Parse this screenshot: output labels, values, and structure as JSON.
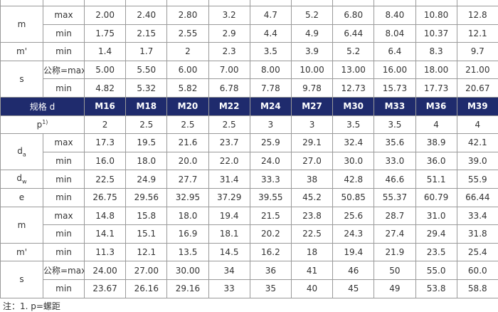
{
  "upper_table": {
    "groups": [
      {
        "label": "m",
        "rows": [
          {
            "sub": "max",
            "values": [
              "2.00",
              "2.40",
              "2.80",
              "3.2",
              "4.7",
              "5.2",
              "6.80",
              "8.40",
              "10.80",
              "12.8"
            ]
          },
          {
            "sub": "min",
            "values": [
              "1.75",
              "2.15",
              "2.55",
              "2.9",
              "4.4",
              "4.9",
              "6.44",
              "8.04",
              "10.37",
              "12.1"
            ]
          }
        ]
      },
      {
        "label": "m'",
        "rows": [
          {
            "sub": "min",
            "values": [
              "1.4",
              "1.7",
              "2",
              "2.3",
              "3.5",
              "3.9",
              "5.2",
              "6.4",
              "8.3",
              "9.7"
            ]
          }
        ]
      },
      {
        "label": "s",
        "rows": [
          {
            "sub": "公称=max",
            "values": [
              "5.00",
              "5.50",
              "6.00",
              "7.00",
              "8.00",
              "10.00",
              "13.00",
              "16.00",
              "18.00",
              "21.00"
            ]
          },
          {
            "sub": "min",
            "values": [
              "4.82",
              "5.32",
              "5.82",
              "6.78",
              "7.78",
              "9.78",
              "12.73",
              "15.73",
              "17.73",
              "20.67"
            ]
          }
        ]
      }
    ]
  },
  "header": {
    "label": "规格 d",
    "sizes": [
      "M16",
      "M18",
      "M20",
      "M22",
      "M24",
      "M27",
      "M30",
      "M33",
      "M36",
      "M39"
    ]
  },
  "lower_table": {
    "groups": [
      {
        "label": "p",
        "label_sup": "1)",
        "rows": [
          {
            "values": [
              "2",
              "2.5",
              "2.5",
              "2.5",
              "3",
              "3",
              "3.5",
              "3.5",
              "4",
              "4"
            ]
          }
        ]
      },
      {
        "label": "d",
        "label_sub": "a",
        "rows": [
          {
            "sub": "max",
            "values": [
              "17.3",
              "19.5",
              "21.6",
              "23.7",
              "25.9",
              "29.1",
              "32.4",
              "35.6",
              "38.9",
              "42.1"
            ]
          },
          {
            "sub": "min",
            "values": [
              "16.0",
              "18.0",
              "20.0",
              "22.0",
              "24.0",
              "27.0",
              "30.0",
              "33.0",
              "36.0",
              "39.0"
            ]
          }
        ]
      },
      {
        "label": "d",
        "label_sub": "w",
        "rows": [
          {
            "sub": "min",
            "values": [
              "22.5",
              "24.9",
              "27.7",
              "31.4",
              "33.3",
              "38",
              "42.8",
              "46.6",
              "51.1",
              "55.9"
            ]
          }
        ]
      },
      {
        "label": "e",
        "rows": [
          {
            "sub": "min",
            "values": [
              "26.75",
              "29.56",
              "32.95",
              "37.29",
              "39.55",
              "45.2",
              "50.85",
              "55.37",
              "60.79",
              "66.44"
            ]
          }
        ]
      },
      {
        "label": "m",
        "rows": [
          {
            "sub": "max",
            "values": [
              "14.8",
              "15.8",
              "18.0",
              "19.4",
              "21.5",
              "23.8",
              "25.6",
              "28.7",
              "31.0",
              "33.4"
            ]
          },
          {
            "sub": "min",
            "values": [
              "14.1",
              "15.1",
              "16.9",
              "18.1",
              "20.2",
              "22.5",
              "24.3",
              "27.4",
              "29.4",
              "31.8"
            ]
          }
        ]
      },
      {
        "label": "m'",
        "rows": [
          {
            "sub": "min",
            "values": [
              "11.3",
              "12.1",
              "13.5",
              "14.5",
              "16.2",
              "18",
              "19.4",
              "21.9",
              "23.5",
              "25.4"
            ]
          }
        ]
      },
      {
        "label": "s",
        "rows": [
          {
            "sub": "公称=max",
            "values": [
              "24.00",
              "27.00",
              "30.00",
              "34",
              "36",
              "41",
              "46",
              "50",
              "55.0",
              "60.0"
            ]
          },
          {
            "sub": "min",
            "values": [
              "23.67",
              "26.16",
              "29.16",
              "33",
              "35",
              "40",
              "45",
              "49",
              "53.8",
              "58.8"
            ]
          }
        ]
      }
    ]
  },
  "footnote": "注：1. p=螺距"
}
